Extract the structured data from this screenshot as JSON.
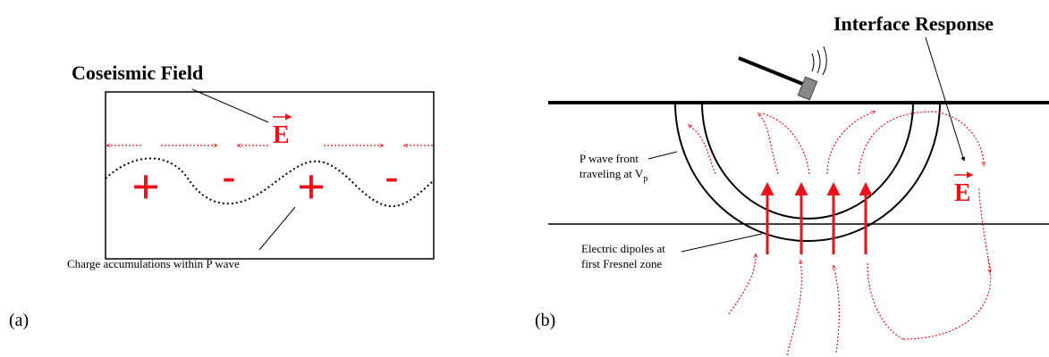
{
  "panel_a": {
    "title": "Coseismic Field",
    "field_symbol": "E",
    "charges": [
      "+",
      "-",
      "+",
      "-"
    ],
    "caption": "Charge accumulations within P wave",
    "label": "(a)"
  },
  "panel_b": {
    "title": "Interface Response",
    "field_symbol": "E",
    "wavefront_label": [
      "P wave front",
      "traveling at V"
    ],
    "wavefront_subscript": "p",
    "dipole_label": [
      "Electric dipoles at",
      "first Fresnel zone"
    ],
    "label": "(b)"
  }
}
